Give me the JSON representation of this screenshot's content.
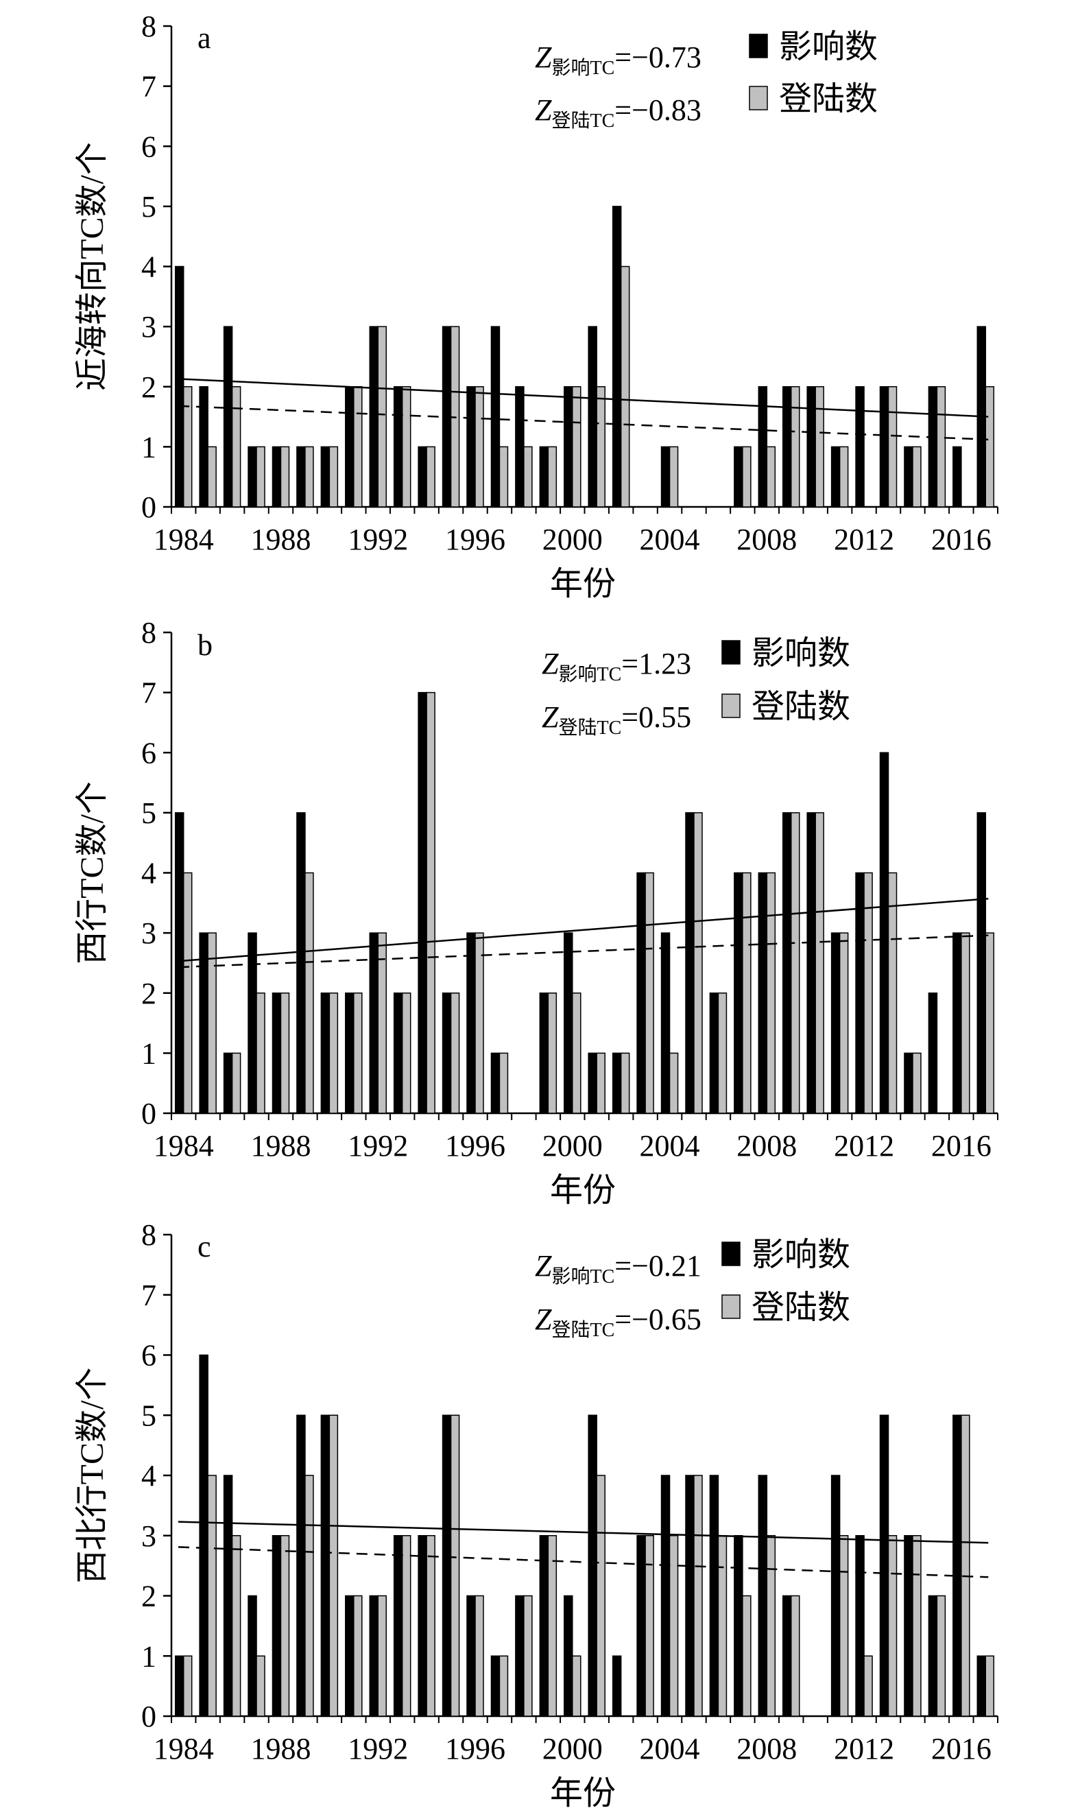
{
  "chart_data": [
    {
      "type": "bar",
      "panel_label": "a",
      "xlabel": "年份",
      "ylabel": "近海转向TC数/个",
      "ylim": [
        0,
        8
      ],
      "y_ticks": [
        "0",
        "1",
        "2",
        "3",
        "4",
        "5",
        "6",
        "7",
        "8"
      ],
      "x_tick_labels": [
        "1984",
        "1988",
        "1992",
        "1996",
        "2000",
        "2004",
        "2008",
        "2012",
        "2016"
      ],
      "categories": [
        1984,
        1985,
        1986,
        1987,
        1988,
        1989,
        1990,
        1991,
        1992,
        1993,
        1994,
        1995,
        1996,
        1997,
        1998,
        1999,
        2000,
        2001,
        2002,
        2003,
        2004,
        2005,
        2006,
        2007,
        2008,
        2009,
        2010,
        2011,
        2012,
        2013,
        2014,
        2015,
        2016,
        2017
      ],
      "series": [
        {
          "name": "影响数",
          "color": "#000000",
          "values": [
            4,
            2,
            3,
            1,
            1,
            1,
            1,
            2,
            3,
            2,
            1,
            3,
            2,
            3,
            2,
            1,
            2,
            3,
            5,
            0,
            1,
            0,
            0,
            1,
            2,
            2,
            2,
            1,
            2,
            2,
            1,
            2,
            1,
            3
          ]
        },
        {
          "name": "登陆数",
          "color": "#c0c0c0",
          "values": [
            2,
            1,
            2,
            1,
            1,
            1,
            1,
            2,
            3,
            2,
            1,
            3,
            2,
            1,
            1,
            1,
            2,
            2,
            4,
            0,
            1,
            0,
            0,
            1,
            1,
            2,
            2,
            1,
            0,
            2,
            1,
            2,
            0,
            2
          ]
        }
      ],
      "trend_lines": [
        {
          "series": "影响数",
          "style": "solid",
          "start": [
            1984,
            2.13
          ],
          "end": [
            2017,
            1.5
          ]
        },
        {
          "series": "登陆数",
          "style": "dashed",
          "start": [
            1984,
            1.68
          ],
          "end": [
            2017,
            1.12
          ]
        }
      ],
      "stats": [
        {
          "symbol": "Z",
          "subscript": "影响TC",
          "value": "=−0.73"
        },
        {
          "symbol": "Z",
          "subscript": "登陆TC",
          "value": "=−0.83"
        }
      ],
      "legend": [
        "影响数",
        "登陆数"
      ],
      "legend_position": "top-right"
    },
    {
      "type": "bar",
      "panel_label": "b",
      "xlabel": "年份",
      "ylabel": "西行TC数/个",
      "ylim": [
        0,
        8
      ],
      "y_ticks": [
        "0",
        "1",
        "2",
        "3",
        "4",
        "5",
        "6",
        "7",
        "8"
      ],
      "x_tick_labels": [
        "1984",
        "1988",
        "1992",
        "1996",
        "2000",
        "2004",
        "2008",
        "2012",
        "2016"
      ],
      "categories": [
        1984,
        1985,
        1986,
        1987,
        1988,
        1989,
        1990,
        1991,
        1992,
        1993,
        1994,
        1995,
        1996,
        1997,
        1998,
        1999,
        2000,
        2001,
        2002,
        2003,
        2004,
        2005,
        2006,
        2007,
        2008,
        2009,
        2010,
        2011,
        2012,
        2013,
        2014,
        2015,
        2016,
        2017
      ],
      "series": [
        {
          "name": "影响数",
          "color": "#000000",
          "values": [
            5,
            3,
            1,
            3,
            2,
            5,
            2,
            2,
            3,
            2,
            7,
            2,
            3,
            1,
            0,
            2,
            3,
            1,
            1,
            4,
            3,
            5,
            2,
            4,
            4,
            5,
            5,
            3,
            4,
            6,
            1,
            2,
            3,
            5
          ]
        },
        {
          "name": "登陆数",
          "color": "#c0c0c0",
          "values": [
            4,
            3,
            1,
            2,
            2,
            4,
            2,
            2,
            3,
            2,
            7,
            2,
            3,
            1,
            0,
            2,
            2,
            1,
            1,
            4,
            1,
            5,
            2,
            4,
            4,
            5,
            5,
            3,
            4,
            4,
            1,
            0,
            3,
            3
          ]
        }
      ],
      "trend_lines": [
        {
          "series": "影响数",
          "style": "solid",
          "start": [
            1984,
            2.53
          ],
          "end": [
            2017,
            3.57
          ]
        },
        {
          "series": "登陆数",
          "style": "dashed",
          "start": [
            1984,
            2.43
          ],
          "end": [
            2017,
            2.96
          ]
        }
      ],
      "stats": [
        {
          "symbol": "Z",
          "subscript": "影响TC",
          "value": "=1.23"
        },
        {
          "symbol": "Z",
          "subscript": "登陆TC",
          "value": "=0.55"
        }
      ],
      "legend": [
        "影响数",
        "登陆数"
      ],
      "legend_position": "top-right"
    },
    {
      "type": "bar",
      "panel_label": "c",
      "xlabel": "年份",
      "ylabel": "西北行TC数/个",
      "ylim": [
        0,
        8
      ],
      "y_ticks": [
        "0",
        "1",
        "2",
        "3",
        "4",
        "5",
        "6",
        "7",
        "8"
      ],
      "x_tick_labels": [
        "1984",
        "1988",
        "1992",
        "1996",
        "2000",
        "2004",
        "2008",
        "2012",
        "2016"
      ],
      "categories": [
        1984,
        1985,
        1986,
        1987,
        1988,
        1989,
        1990,
        1991,
        1992,
        1993,
        1994,
        1995,
        1996,
        1997,
        1998,
        1999,
        2000,
        2001,
        2002,
        2003,
        2004,
        2005,
        2006,
        2007,
        2008,
        2009,
        2010,
        2011,
        2012,
        2013,
        2014,
        2015,
        2016,
        2017
      ],
      "series": [
        {
          "name": "影响数",
          "color": "#000000",
          "values": [
            1,
            6,
            4,
            2,
            3,
            5,
            5,
            2,
            2,
            3,
            3,
            5,
            2,
            1,
            2,
            3,
            2,
            5,
            1,
            3,
            4,
            4,
            4,
            3,
            4,
            2,
            0,
            4,
            3,
            5,
            3,
            2,
            5,
            1
          ]
        },
        {
          "name": "登陆数",
          "color": "#c0c0c0",
          "values": [
            1,
            4,
            3,
            1,
            3,
            4,
            5,
            2,
            2,
            3,
            3,
            5,
            2,
            1,
            2,
            3,
            1,
            4,
            0,
            3,
            3,
            4,
            3,
            2,
            3,
            2,
            0,
            3,
            1,
            3,
            3,
            2,
            5,
            1
          ]
        }
      ],
      "trend_lines": [
        {
          "series": "影响数",
          "style": "solid",
          "start": [
            1984,
            3.23
          ],
          "end": [
            2017,
            2.88
          ]
        },
        {
          "series": "登陆数",
          "style": "dashed",
          "start": [
            1984,
            2.81
          ],
          "end": [
            2017,
            2.31
          ]
        }
      ],
      "stats": [
        {
          "symbol": "Z",
          "subscript": "影响TC",
          "value": "=−0.21"
        },
        {
          "symbol": "Z",
          "subscript": "登陆TC",
          "value": "=−0.65"
        }
      ],
      "legend": [
        "影响数",
        "登陆数"
      ],
      "legend_position": "top-right"
    }
  ]
}
